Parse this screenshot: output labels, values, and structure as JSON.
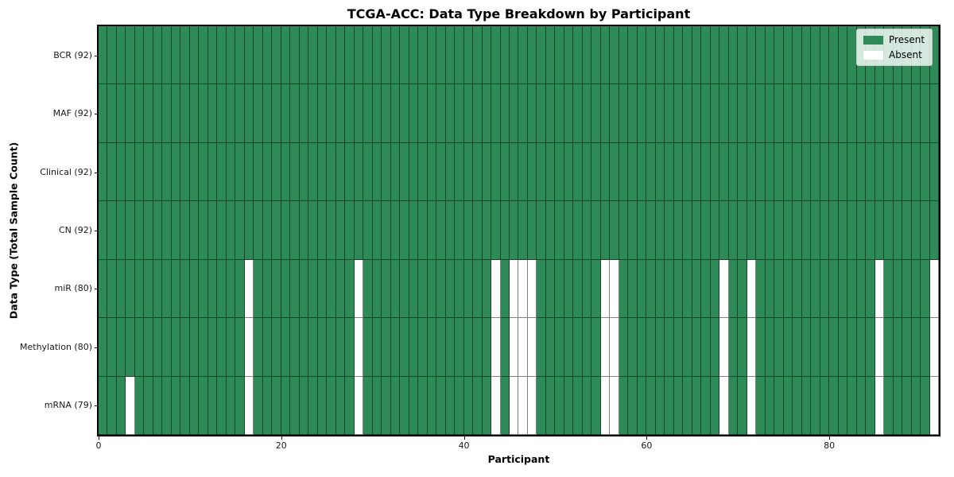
{
  "title": "TCGA-ACC: Data Type Breakdown by Participant",
  "colors": {
    "present": "#2e8b57",
    "absent": "#ffffff"
  },
  "chart_data": {
    "type": "heatmap",
    "title": "TCGA-ACC: Data Type Breakdown by Participant",
    "xlabel": "Participant",
    "ylabel": "Data Type (Total Sample Count)",
    "x_range": [
      0,
      92
    ],
    "x_ticks": [
      0,
      20,
      40,
      60,
      80
    ],
    "n_participants": 92,
    "grid": false,
    "legend_position": "upper right",
    "cell_states": {
      "present_value": 1,
      "absent_value": 0
    },
    "rows": [
      {
        "label": "BCR (92)",
        "total": 92,
        "absent_participants": []
      },
      {
        "label": "MAF (92)",
        "total": 92,
        "absent_participants": []
      },
      {
        "label": "Clinical (92)",
        "total": 92,
        "absent_participants": []
      },
      {
        "label": "CN (92)",
        "total": 92,
        "absent_participants": []
      },
      {
        "label": "miR (80)",
        "total": 80,
        "absent_participants": [
          16,
          28,
          43,
          45,
          46,
          47,
          55,
          56,
          68,
          71,
          85,
          91
        ]
      },
      {
        "label": "Methylation (80)",
        "total": 80,
        "absent_participants": [
          16,
          28,
          43,
          45,
          46,
          47,
          55,
          56,
          68,
          71,
          85,
          91
        ]
      },
      {
        "label": "mRNA (79)",
        "total": 79,
        "absent_participants": [
          3,
          16,
          28,
          43,
          45,
          46,
          47,
          55,
          56,
          68,
          71,
          85,
          91
        ]
      }
    ],
    "legend": [
      {
        "label": "Present",
        "color": "#2e8b57"
      },
      {
        "label": "Absent",
        "color": "#ffffff"
      }
    ]
  }
}
